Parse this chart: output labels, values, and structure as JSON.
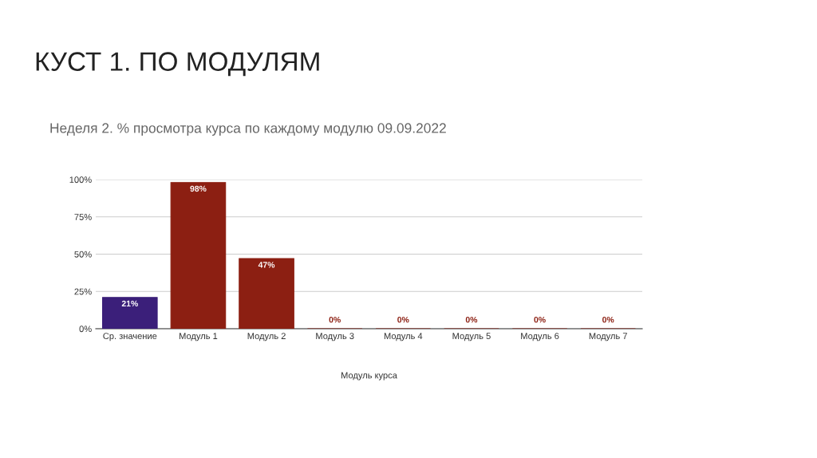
{
  "chart_data": {
    "type": "bar",
    "title": "КУСТ 1. ПО МОДУЛЯМ",
    "subtitle": "Неделя 2. % просмотра курса по каждому модулю 09.09.2022",
    "xlabel": "Модуль курса",
    "categories": [
      "Ср. значение",
      "Модуль 1",
      "Модуль 2",
      "Модуль 3",
      "Модуль 4",
      "Модуль 5",
      "Модуль 6",
      "Модуль 7"
    ],
    "values": [
      21,
      98,
      47,
      0,
      0,
      0,
      0,
      0
    ],
    "colors": [
      "#3b1f7a",
      "#8c1f12",
      "#8c1f12",
      "#8c1f12",
      "#8c1f12",
      "#8c1f12",
      "#8c1f12",
      "#8c1f12"
    ],
    "value_labels": [
      "21%",
      "98%",
      "47%",
      "0%",
      "0%",
      "0%",
      "0%",
      "0%"
    ],
    "ylim": [
      0,
      100
    ],
    "yticks": [
      {
        "value": 0,
        "label": "0%"
      },
      {
        "value": 25,
        "label": "25%"
      },
      {
        "value": 50,
        "label": "50%"
      },
      {
        "value": 75,
        "label": "75%"
      },
      {
        "value": 100,
        "label": "100%"
      }
    ],
    "grid": "y"
  }
}
